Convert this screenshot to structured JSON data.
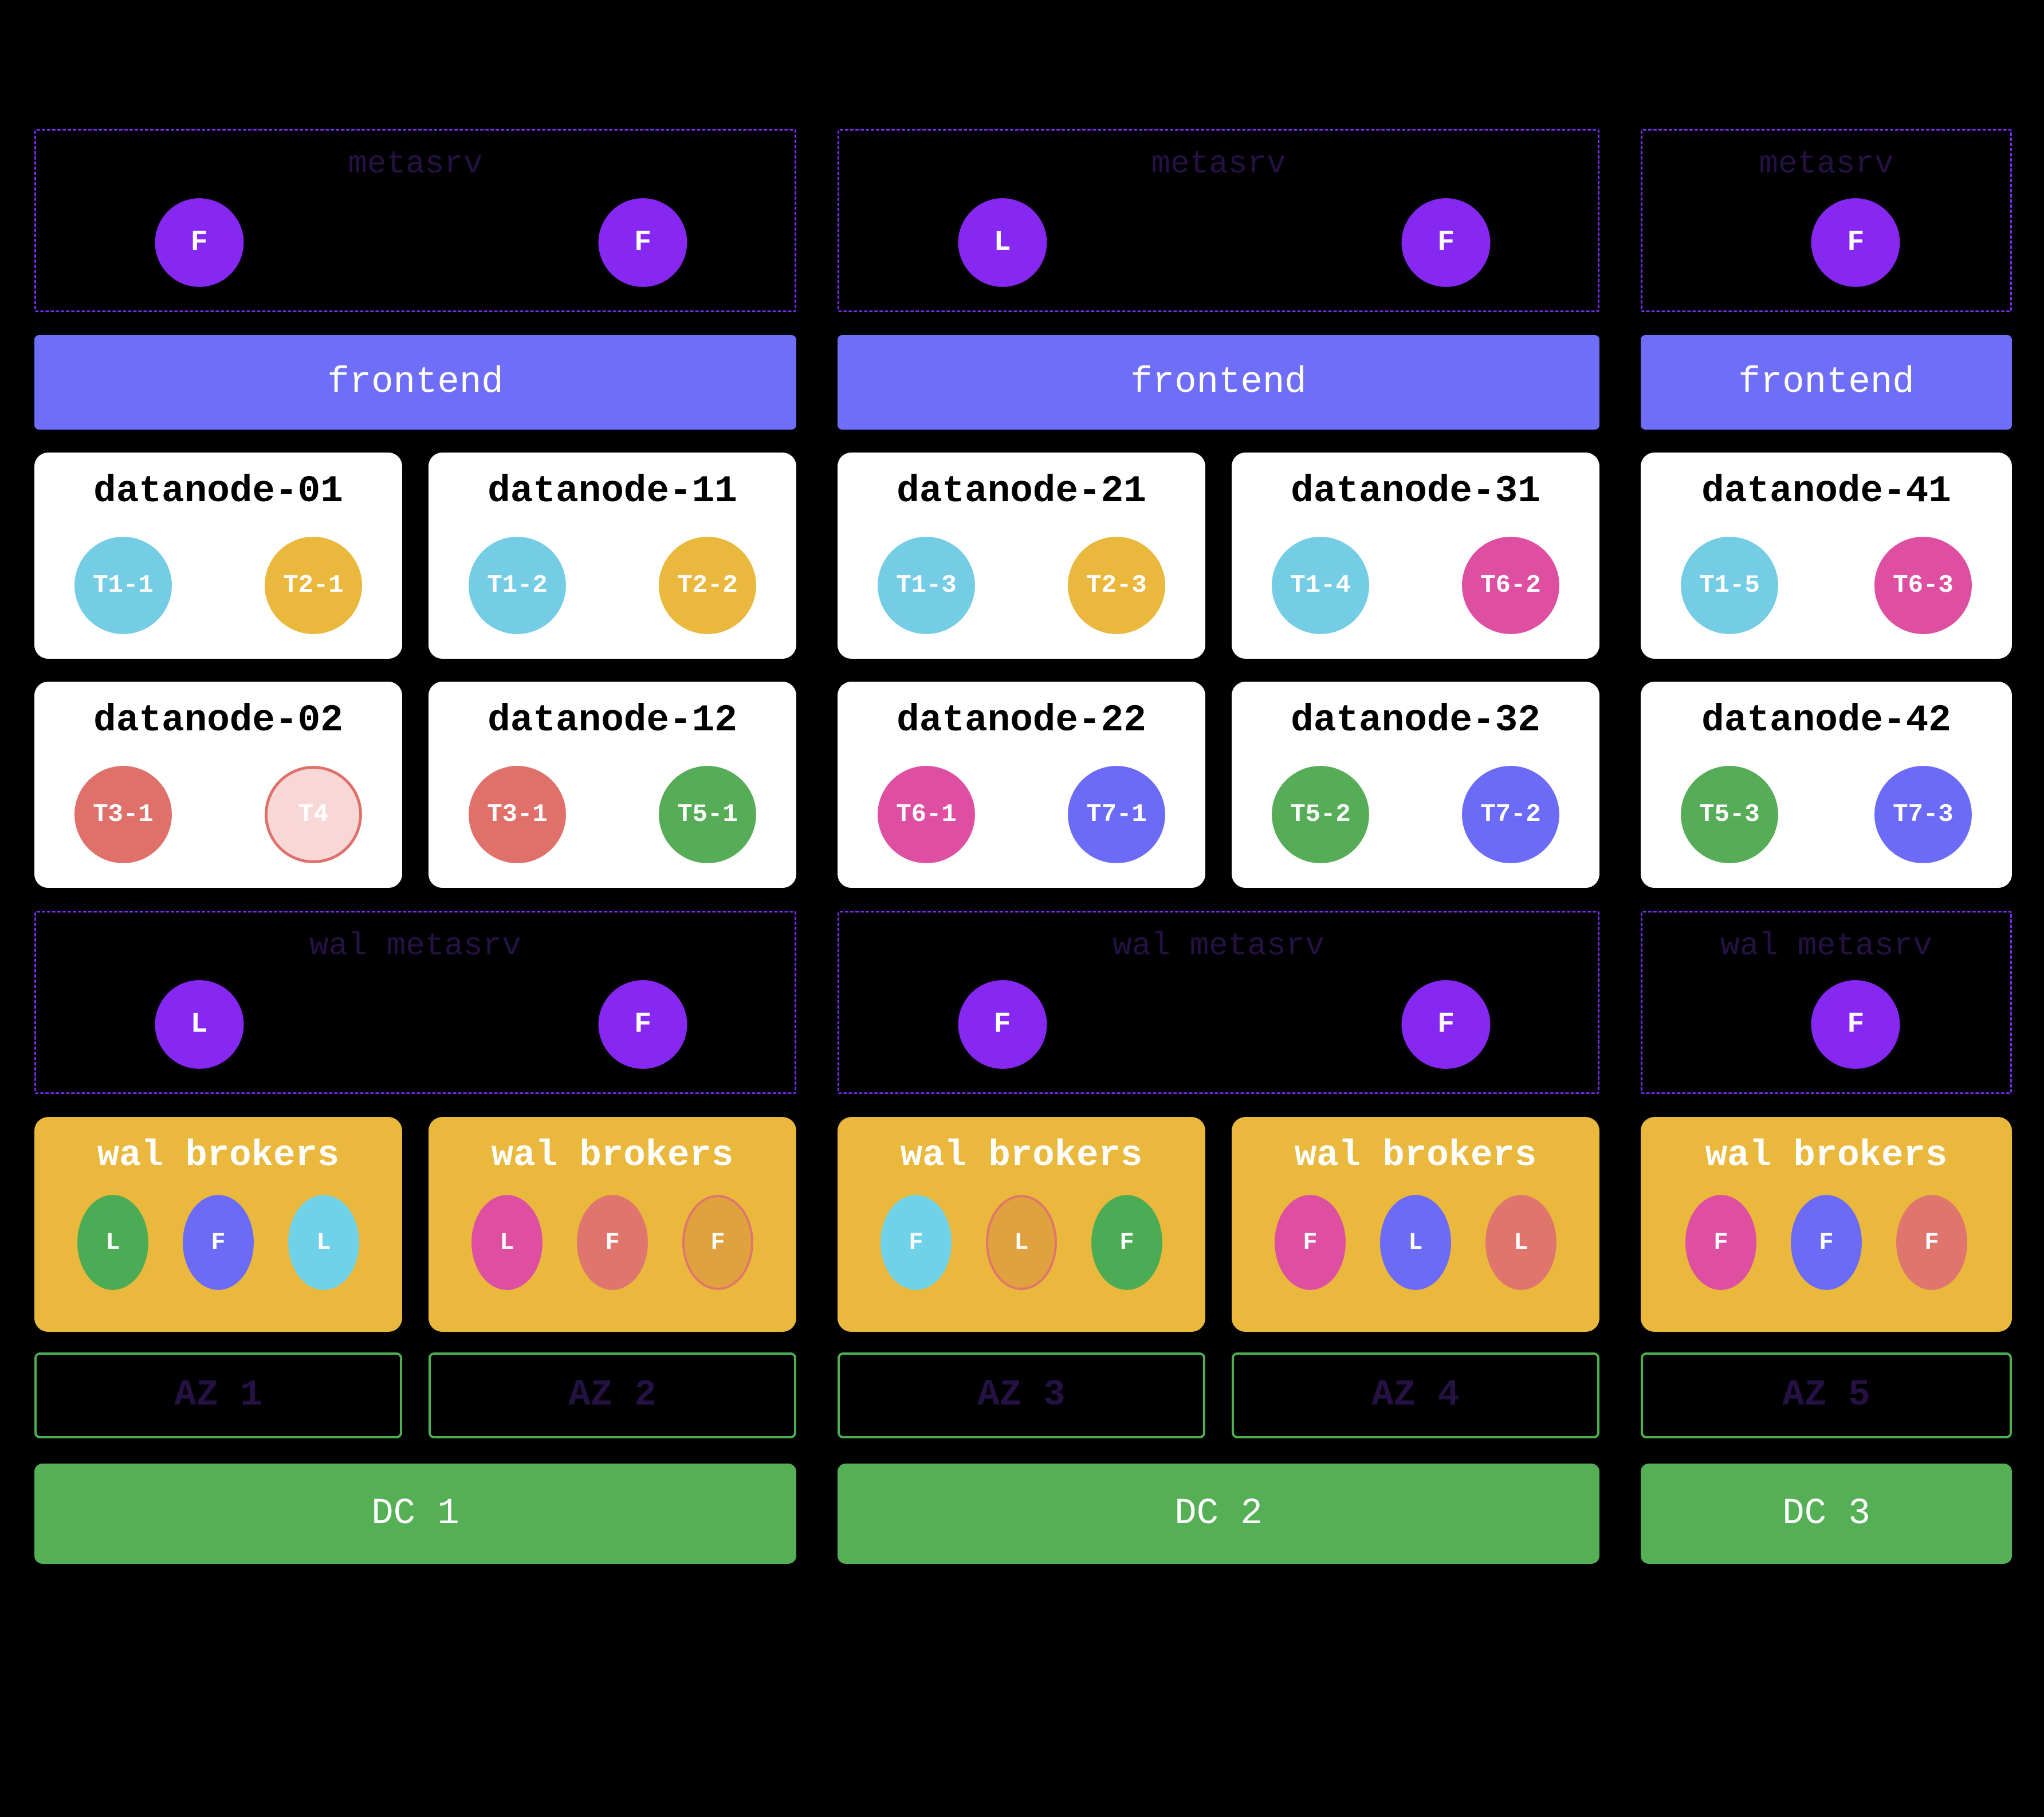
{
  "palette": {
    "background": "#000000",
    "metasrv_node": "#8627f2",
    "dashed_border": "#7a2df0",
    "dim_label": "#261145",
    "frontend_bar": "#6e6ef8",
    "datanode_bg": "#ffffff",
    "broker_box": "#e9b83d",
    "az_border": "#4caf50",
    "dc_bar": "#55b055"
  },
  "dcs": [
    {
      "label": "DC 1",
      "metasrv": {
        "title": "metasrv",
        "nodes": [
          {
            "role": "F"
          },
          {
            "role": "F"
          }
        ]
      },
      "frontend": "frontend",
      "wal_metasrv": {
        "title": "wal metasrv",
        "nodes": [
          {
            "role": "L"
          },
          {
            "role": "F"
          }
        ]
      },
      "azs": [
        {
          "label": "AZ 1",
          "datanodes": [
            {
              "name": "datanode-01",
              "regions": [
                {
                  "label": "T1-1",
                  "color": "#74cde4"
                },
                {
                  "label": "T2-1",
                  "color": "#e9b83d"
                }
              ]
            },
            {
              "name": "datanode-02",
              "regions": [
                {
                  "label": "T3-1",
                  "color": "#e0706a"
                },
                {
                  "label": "T4",
                  "color": "#f8d8d6",
                  "border": "#e0706a"
                }
              ]
            }
          ],
          "brokers": {
            "title": "wal brokers",
            "nodes": [
              {
                "role": "L",
                "color": "#4cab55"
              },
              {
                "role": "F",
                "color": "#6b6bf7"
              },
              {
                "role": "L",
                "color": "#6fd2e8"
              }
            ]
          }
        },
        {
          "label": "AZ 2",
          "datanodes": [
            {
              "name": "datanode-11",
              "regions": [
                {
                  "label": "T1-2",
                  "color": "#74cde4"
                },
                {
                  "label": "T2-2",
                  "color": "#e9b83d"
                }
              ]
            },
            {
              "name": "datanode-12",
              "regions": [
                {
                  "label": "T3-1",
                  "color": "#e0706a"
                },
                {
                  "label": "T5-1",
                  "color": "#57ac57"
                }
              ]
            }
          ],
          "brokers": {
            "title": "wal brokers",
            "nodes": [
              {
                "role": "L",
                "color": "#de4fa2"
              },
              {
                "role": "F",
                "color": "#e0756e"
              },
              {
                "role": "F",
                "color": "#dfa23f",
                "border": "#e0756e"
              }
            ]
          }
        }
      ]
    },
    {
      "label": "DC 2",
      "metasrv": {
        "title": "metasrv",
        "nodes": [
          {
            "role": "L"
          },
          {
            "role": "F"
          }
        ]
      },
      "frontend": "frontend",
      "wal_metasrv": {
        "title": "wal metasrv",
        "nodes": [
          {
            "role": "F"
          },
          {
            "role": "F"
          }
        ]
      },
      "azs": [
        {
          "label": "AZ 3",
          "datanodes": [
            {
              "name": "datanode-21",
              "regions": [
                {
                  "label": "T1-3",
                  "color": "#74cde4"
                },
                {
                  "label": "T2-3",
                  "color": "#e9b83d"
                }
              ]
            },
            {
              "name": "datanode-22",
              "regions": [
                {
                  "label": "T6-1",
                  "color": "#de4fa2"
                },
                {
                  "label": "T7-1",
                  "color": "#6b6bf7"
                }
              ]
            }
          ],
          "brokers": {
            "title": "wal brokers",
            "nodes": [
              {
                "role": "F",
                "color": "#6fd2e8"
              },
              {
                "role": "L",
                "color": "#dfa23f",
                "border": "#e0756e"
              },
              {
                "role": "F",
                "color": "#4cab55"
              }
            ]
          }
        },
        {
          "label": "AZ 4",
          "datanodes": [
            {
              "name": "datanode-31",
              "regions": [
                {
                  "label": "T1-4",
                  "color": "#74cde4"
                },
                {
                  "label": "T6-2",
                  "color": "#de4fa2"
                }
              ]
            },
            {
              "name": "datanode-32",
              "regions": [
                {
                  "label": "T5-2",
                  "color": "#57ac57"
                },
                {
                  "label": "T7-2",
                  "color": "#6b6bf7"
                }
              ]
            }
          ],
          "brokers": {
            "title": "wal brokers",
            "nodes": [
              {
                "role": "F",
                "color": "#de4fa2"
              },
              {
                "role": "L",
                "color": "#6b6bf7"
              },
              {
                "role": "L",
                "color": "#e0756e"
              }
            ]
          }
        }
      ]
    },
    {
      "label": "DC 3",
      "metasrv": {
        "title": "metasrv",
        "nodes": [
          {
            "role": "F"
          }
        ]
      },
      "frontend": "frontend",
      "wal_metasrv": {
        "title": "wal metasrv",
        "nodes": [
          {
            "role": "F"
          }
        ]
      },
      "azs": [
        {
          "label": "AZ 5",
          "datanodes": [
            {
              "name": "datanode-41",
              "regions": [
                {
                  "label": "T1-5",
                  "color": "#74cde4"
                },
                {
                  "label": "T6-3",
                  "color": "#de4fa2"
                }
              ]
            },
            {
              "name": "datanode-42",
              "regions": [
                {
                  "label": "T5-3",
                  "color": "#57ac57"
                },
                {
                  "label": "T7-3",
                  "color": "#6b6bf7"
                }
              ]
            }
          ],
          "brokers": {
            "title": "wal brokers",
            "nodes": [
              {
                "role": "F",
                "color": "#de4fa2"
              },
              {
                "role": "F",
                "color": "#6b6bf7"
              },
              {
                "role": "F",
                "color": "#e0756e"
              }
            ]
          }
        }
      ]
    }
  ]
}
